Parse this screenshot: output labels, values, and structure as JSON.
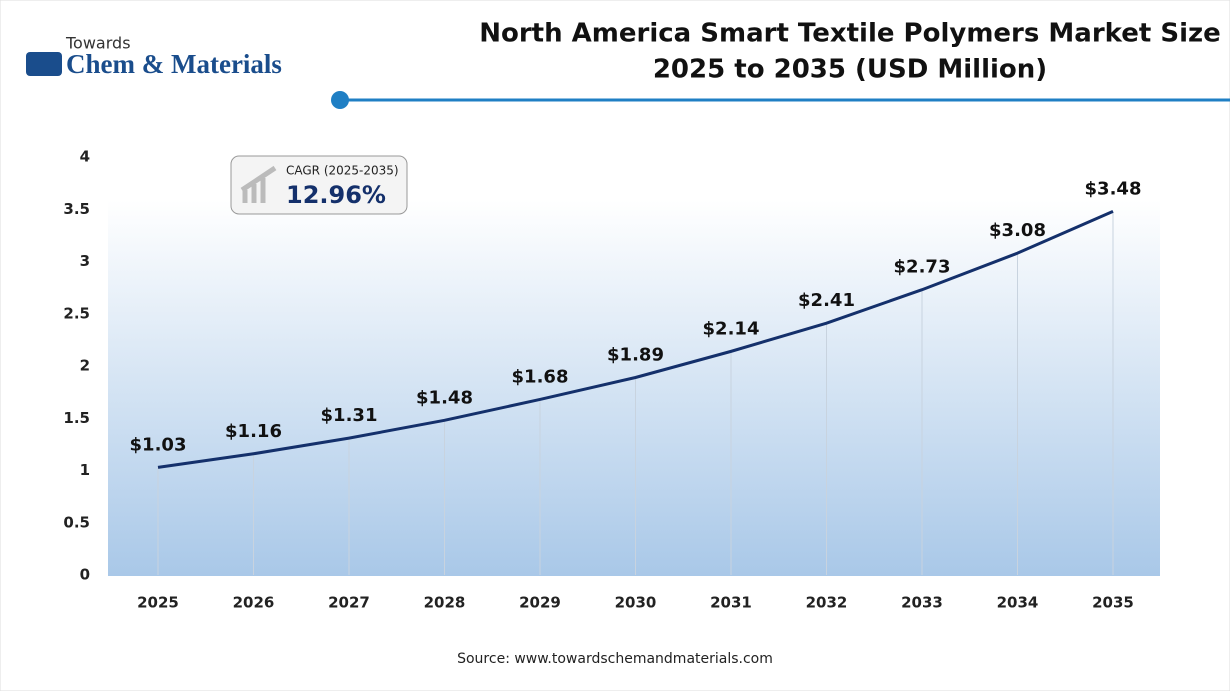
{
  "logo": {
    "top": "Towards",
    "name": "Chem & Materials"
  },
  "chart_data": {
    "type": "line",
    "title": "North America Smart Textile Polymers Market Size",
    "subtitle": "2025 to 2035 (USD Million)",
    "categories": [
      "2025",
      "2026",
      "2027",
      "2028",
      "2029",
      "2030",
      "2031",
      "2032",
      "2033",
      "2034",
      "2035"
    ],
    "series": [
      {
        "color": "#14306b",
        "values": [
          1.03,
          1.16,
          1.31,
          1.48,
          1.68,
          1.89,
          2.14,
          2.41,
          2.73,
          3.08,
          3.48
        ],
        "value_labels": [
          "$1.03",
          "$1.16",
          "$1.31",
          "$1.48",
          "$1.68",
          "$1.89",
          "$2.14",
          "$2.41",
          "$2.73",
          "$3.08",
          "$3.48"
        ]
      }
    ],
    "ylim": [
      0,
      4
    ],
    "yticks": [
      0,
      0.5,
      1,
      1.5,
      2,
      2.5,
      3,
      3.5,
      4
    ],
    "annotation": {
      "label": "CAGR (2025-2035)",
      "value": "12.96%"
    },
    "source": "Source: www.towardschemandmaterials.com"
  }
}
